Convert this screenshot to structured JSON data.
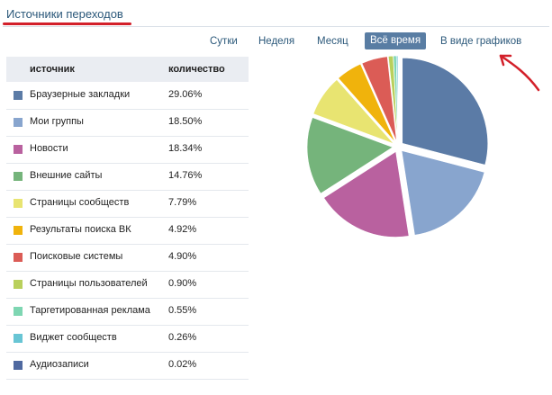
{
  "title": "Источники переходов",
  "tabs": [
    {
      "label": "Сутки",
      "active": false
    },
    {
      "label": "Неделя",
      "active": false
    },
    {
      "label": "Месяц",
      "active": false
    },
    {
      "label": "Всё время",
      "active": true
    },
    {
      "label": "В виде графиков",
      "active": false
    }
  ],
  "table": {
    "headers": {
      "source": "источник",
      "count": "количество"
    },
    "rows": [
      {
        "source": "Браузерные закладки",
        "percent": "29.06%",
        "value": 29.06,
        "color": "#5b7ba6"
      },
      {
        "source": "Мои группы",
        "percent": "18.50%",
        "value": 18.5,
        "color": "#88a5ce"
      },
      {
        "source": "Новости",
        "percent": "18.34%",
        "value": 18.34,
        "color": "#b9619f"
      },
      {
        "source": "Внешние сайты",
        "percent": "14.76%",
        "value": 14.76,
        "color": "#75b47b"
      },
      {
        "source": "Страницы сообществ",
        "percent": "7.79%",
        "value": 7.79,
        "color": "#e8e471"
      },
      {
        "source": "Результаты поиска ВК",
        "percent": "4.92%",
        "value": 4.92,
        "color": "#f0b30c"
      },
      {
        "source": "Поисковые системы",
        "percent": "4.90%",
        "value": 4.9,
        "color": "#db5c56"
      },
      {
        "source": "Страницы пользователей",
        "percent": "0.90%",
        "value": 0.9,
        "color": "#b9d05c"
      },
      {
        "source": "Таргетированная реклама",
        "percent": "0.55%",
        "value": 0.55,
        "color": "#7ed6b2"
      },
      {
        "source": "Виджет сообществ",
        "percent": "0.26%",
        "value": 0.26,
        "color": "#68c5d4"
      },
      {
        "source": "Аудиозаписи",
        "percent": "0.02%",
        "value": 0.02,
        "color": "#4f69a0"
      }
    ]
  },
  "colors": {
    "accent": "#597da3",
    "link": "#2b587a",
    "annotation": "#d3202a"
  }
}
